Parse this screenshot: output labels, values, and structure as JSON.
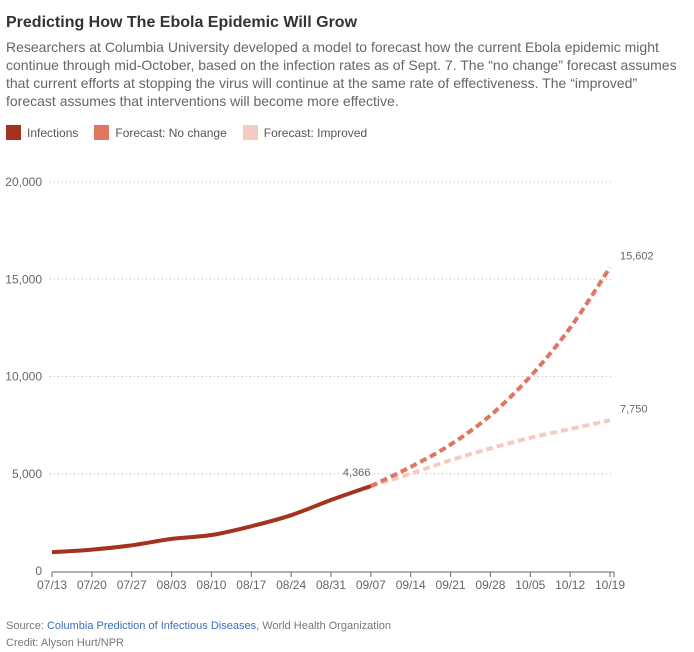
{
  "title": "Predicting How The Ebola Epidemic Will Grow",
  "description": "Researchers at Columbia University developed a model to forecast how the current Ebola epidemic might continue through mid-October, based on the infection rates as of Sept. 7. The “no change” forecast assumes that current efforts at stopping the virus will continue at the same rate of effectiveness. The “improved” forecast assumes that interventions will become more effective.",
  "legend": [
    {
      "label": "Infections",
      "color": "#a4321f"
    },
    {
      "label": "Forecast: No change",
      "color": "#e07560"
    },
    {
      "label": "Forecast: Improved",
      "color": "#f5cbc1"
    }
  ],
  "footer": {
    "source_prefix": "Source: ",
    "source_link": "Columbia Prediction of Infectious Diseases",
    "source_suffix": ", World Health Organization",
    "credit": "Credit: Alyson Hurt/NPR"
  },
  "chart_data": {
    "type": "line",
    "title": "Predicting How The Ebola Epidemic Will Grow",
    "xlabel": "",
    "ylabel": "",
    "ylim": [
      0,
      20000
    ],
    "yticks": [
      0,
      5000,
      10000,
      15000,
      20000
    ],
    "ytick_labels": [
      "0",
      "5,000",
      "10,000",
      "15,000",
      "20,000"
    ],
    "categories": [
      "07/13",
      "07/20",
      "07/27",
      "08/03",
      "08/10",
      "08/17",
      "08/24",
      "08/31",
      "09/07",
      "09/14",
      "09/21",
      "09/28",
      "10/05",
      "10/12",
      "10/19"
    ],
    "grid": true,
    "legend_position": "top-left",
    "series": [
      {
        "name": "Infections",
        "color": "#a4321f",
        "dashed": false,
        "values": [
          964,
          1100,
          1320,
          1650,
          1850,
          2300,
          2870,
          3650,
          4366,
          null,
          null,
          null,
          null,
          null,
          null
        ]
      },
      {
        "name": "Forecast: No change",
        "color": "#e07560",
        "dashed": true,
        "values": [
          null,
          null,
          null,
          null,
          null,
          null,
          null,
          null,
          4366,
          5350,
          6500,
          8000,
          10000,
          12500,
          15602
        ]
      },
      {
        "name": "Forecast: Improved",
        "color": "#f5cbc1",
        "dashed": true,
        "values": [
          null,
          null,
          null,
          null,
          null,
          null,
          null,
          null,
          4366,
          5000,
          5700,
          6300,
          6850,
          7300,
          7750
        ]
      }
    ],
    "annotations": [
      {
        "text": "4,366",
        "category": "09/07",
        "value": 4366
      },
      {
        "text": "15,602",
        "category": "10/19",
        "value": 15602
      },
      {
        "text": "7,750",
        "category": "10/19",
        "value": 7750
      }
    ]
  }
}
